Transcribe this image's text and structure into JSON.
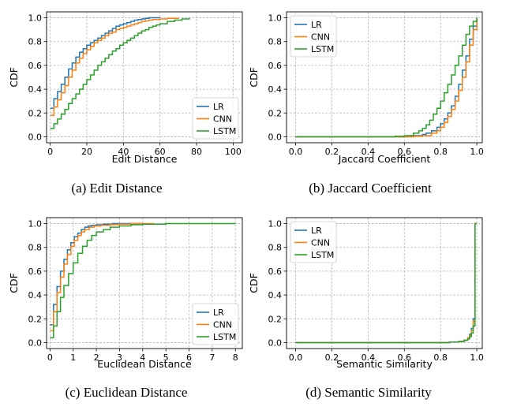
{
  "colors": {
    "LR": "#1f77b4",
    "CNN": "#ff7f0e",
    "LSTM": "#2ca02c",
    "grid": "#b0b0b0"
  },
  "chart_data": [
    {
      "type": "line",
      "caption": "(a)  Edit Distance",
      "xlabel": "Edit Distance",
      "ylabel": "CDF",
      "xlim": [
        -2,
        105
      ],
      "ylim": [
        -0.05,
        1.05
      ],
      "xticks": [
        0,
        20,
        40,
        60,
        80,
        100
      ],
      "yticks": [
        0.0,
        0.2,
        0.4,
        0.6,
        0.8,
        1.0
      ],
      "grid": true,
      "step": true,
      "legend": "lower-right",
      "series": [
        {
          "name": "LR",
          "x": [
            0,
            2,
            4,
            6,
            8,
            10,
            12,
            14,
            16,
            18,
            20,
            22,
            24,
            26,
            28,
            30,
            32,
            34,
            36,
            38,
            40,
            42,
            44,
            46,
            48,
            50,
            52,
            54,
            56,
            60
          ],
          "y": [
            0.24,
            0.32,
            0.38,
            0.44,
            0.5,
            0.57,
            0.62,
            0.67,
            0.71,
            0.74,
            0.77,
            0.79,
            0.81,
            0.83,
            0.85,
            0.87,
            0.89,
            0.91,
            0.93,
            0.94,
            0.95,
            0.96,
            0.97,
            0.98,
            0.985,
            0.99,
            0.995,
            1.0,
            1.0,
            1.0
          ]
        },
        {
          "name": "CNN",
          "x": [
            0,
            2,
            4,
            6,
            8,
            10,
            12,
            14,
            16,
            18,
            20,
            22,
            24,
            26,
            28,
            30,
            32,
            34,
            36,
            38,
            40,
            42,
            44,
            46,
            48,
            50,
            52,
            54,
            56,
            60,
            64,
            70
          ],
          "y": [
            0.18,
            0.25,
            0.31,
            0.37,
            0.43,
            0.5,
            0.56,
            0.62,
            0.66,
            0.7,
            0.73,
            0.76,
            0.79,
            0.81,
            0.83,
            0.85,
            0.87,
            0.88,
            0.9,
            0.91,
            0.92,
            0.93,
            0.94,
            0.95,
            0.96,
            0.97,
            0.975,
            0.98,
            0.985,
            0.99,
            0.995,
            1.0
          ]
        },
        {
          "name": "LSTM",
          "x": [
            0,
            2,
            4,
            6,
            8,
            10,
            12,
            14,
            16,
            18,
            20,
            22,
            24,
            26,
            28,
            30,
            32,
            34,
            36,
            38,
            40,
            42,
            44,
            46,
            48,
            50,
            52,
            54,
            56,
            58,
            60,
            64,
            68,
            72,
            76
          ],
          "y": [
            0.07,
            0.11,
            0.15,
            0.19,
            0.23,
            0.28,
            0.32,
            0.36,
            0.4,
            0.44,
            0.48,
            0.52,
            0.56,
            0.6,
            0.63,
            0.66,
            0.69,
            0.72,
            0.74,
            0.77,
            0.79,
            0.81,
            0.83,
            0.85,
            0.87,
            0.89,
            0.9,
            0.92,
            0.93,
            0.94,
            0.95,
            0.97,
            0.98,
            0.99,
            1.0
          ]
        }
      ]
    },
    {
      "type": "line",
      "caption": "(b)  Jaccard Coefficient",
      "xlabel": "Jaccard Coefficient",
      "ylabel": "CDF",
      "xlim": [
        -0.05,
        1.03
      ],
      "ylim": [
        -0.05,
        1.05
      ],
      "xticks": [
        0.0,
        0.2,
        0.4,
        0.6,
        0.8,
        1.0
      ],
      "yticks": [
        0.0,
        0.2,
        0.4,
        0.6,
        0.8,
        1.0
      ],
      "grid": true,
      "step": true,
      "legend": "upper-left",
      "series": [
        {
          "name": "LR",
          "x": [
            0.0,
            0.6,
            0.65,
            0.7,
            0.72,
            0.75,
            0.78,
            0.8,
            0.82,
            0.84,
            0.86,
            0.88,
            0.9,
            0.92,
            0.94,
            0.96,
            0.98,
            1.0
          ],
          "y": [
            0.0,
            0.005,
            0.01,
            0.02,
            0.03,
            0.05,
            0.08,
            0.11,
            0.15,
            0.2,
            0.26,
            0.34,
            0.44,
            0.56,
            0.68,
            0.82,
            0.93,
            1.0
          ]
        },
        {
          "name": "CNN",
          "x": [
            0.0,
            0.65,
            0.7,
            0.75,
            0.78,
            0.8,
            0.82,
            0.84,
            0.86,
            0.88,
            0.9,
            0.92,
            0.94,
            0.96,
            0.98,
            1.0
          ],
          "y": [
            0.0,
            0.005,
            0.01,
            0.03,
            0.05,
            0.08,
            0.12,
            0.17,
            0.23,
            0.3,
            0.39,
            0.5,
            0.63,
            0.77,
            0.9,
            1.0
          ]
        },
        {
          "name": "LSTM",
          "x": [
            0.0,
            0.55,
            0.6,
            0.65,
            0.68,
            0.7,
            0.72,
            0.74,
            0.76,
            0.78,
            0.8,
            0.82,
            0.84,
            0.86,
            0.88,
            0.9,
            0.92,
            0.94,
            0.96,
            0.98,
            1.0
          ],
          "y": [
            0.0,
            0.005,
            0.01,
            0.03,
            0.05,
            0.07,
            0.1,
            0.14,
            0.19,
            0.24,
            0.3,
            0.37,
            0.44,
            0.52,
            0.6,
            0.68,
            0.77,
            0.86,
            0.93,
            0.97,
            1.0
          ]
        }
      ]
    },
    {
      "type": "line",
      "caption": "(c)  Euclidean Distance",
      "xlabel": "Euclidean Distance",
      "ylabel": "CDF",
      "xlim": [
        -0.15,
        8.3
      ],
      "ylim": [
        -0.05,
        1.05
      ],
      "xticks": [
        0,
        1,
        2,
        3,
        4,
        5,
        6,
        7,
        8
      ],
      "yticks": [
        0.0,
        0.2,
        0.4,
        0.6,
        0.8,
        1.0
      ],
      "grid": true,
      "step": true,
      "legend": "lower-right",
      "series": [
        {
          "name": "LR",
          "x": [
            0,
            0.15,
            0.3,
            0.45,
            0.6,
            0.75,
            0.9,
            1.05,
            1.2,
            1.35,
            1.5,
            1.65,
            1.8,
            2.0,
            2.3,
            2.7,
            3.2,
            4.0
          ],
          "y": [
            0.15,
            0.32,
            0.47,
            0.6,
            0.7,
            0.78,
            0.84,
            0.89,
            0.92,
            0.95,
            0.97,
            0.98,
            0.985,
            0.99,
            0.995,
            1.0,
            1.0,
            1.0
          ]
        },
        {
          "name": "CNN",
          "x": [
            0,
            0.15,
            0.3,
            0.45,
            0.6,
            0.75,
            0.9,
            1.05,
            1.2,
            1.35,
            1.5,
            1.7,
            1.9,
            2.2,
            2.6,
            3.0,
            3.5,
            4.5
          ],
          "y": [
            0.1,
            0.26,
            0.42,
            0.55,
            0.66,
            0.74,
            0.81,
            0.86,
            0.9,
            0.93,
            0.95,
            0.97,
            0.98,
            0.985,
            0.99,
            0.995,
            1.0,
            1.0
          ]
        },
        {
          "name": "LSTM",
          "x": [
            0,
            0.15,
            0.3,
            0.45,
            0.6,
            0.8,
            1.0,
            1.2,
            1.4,
            1.6,
            1.8,
            2.0,
            2.3,
            2.6,
            3.0,
            3.5,
            4.0,
            5.0,
            8.0
          ],
          "y": [
            0.04,
            0.14,
            0.26,
            0.38,
            0.48,
            0.58,
            0.67,
            0.75,
            0.81,
            0.86,
            0.9,
            0.93,
            0.95,
            0.97,
            0.98,
            0.99,
            0.995,
            1.0,
            1.0
          ]
        }
      ]
    },
    {
      "type": "line",
      "caption": "(d)  Semantic Similarity",
      "xlabel": "Semantic Similarity",
      "ylabel": "CDF",
      "xlim": [
        -0.05,
        1.03
      ],
      "ylim": [
        -0.05,
        1.05
      ],
      "xticks": [
        0.0,
        0.2,
        0.4,
        0.6,
        0.8,
        1.0
      ],
      "yticks": [
        0.0,
        0.2,
        0.4,
        0.6,
        0.8,
        1.0
      ],
      "grid": true,
      "step": true,
      "legend": "upper-left",
      "series": [
        {
          "name": "LR",
          "x": [
            0.0,
            0.85,
            0.9,
            0.93,
            0.95,
            0.96,
            0.97,
            0.98,
            0.99,
            1.0
          ],
          "y": [
            0.0,
            0.005,
            0.01,
            0.02,
            0.04,
            0.07,
            0.12,
            0.2,
            1.0,
            1.0
          ]
        },
        {
          "name": "CNN",
          "x": [
            0.0,
            0.85,
            0.9,
            0.93,
            0.95,
            0.96,
            0.97,
            0.98,
            0.99,
            1.0
          ],
          "y": [
            0.0,
            0.005,
            0.01,
            0.02,
            0.04,
            0.06,
            0.1,
            0.18,
            1.0,
            1.0
          ]
        },
        {
          "name": "LSTM",
          "x": [
            0.0,
            0.85,
            0.9,
            0.93,
            0.95,
            0.96,
            0.97,
            0.98,
            0.99,
            1.0
          ],
          "y": [
            0.0,
            0.005,
            0.01,
            0.02,
            0.03,
            0.05,
            0.08,
            0.14,
            1.0,
            1.0
          ]
        }
      ]
    }
  ]
}
